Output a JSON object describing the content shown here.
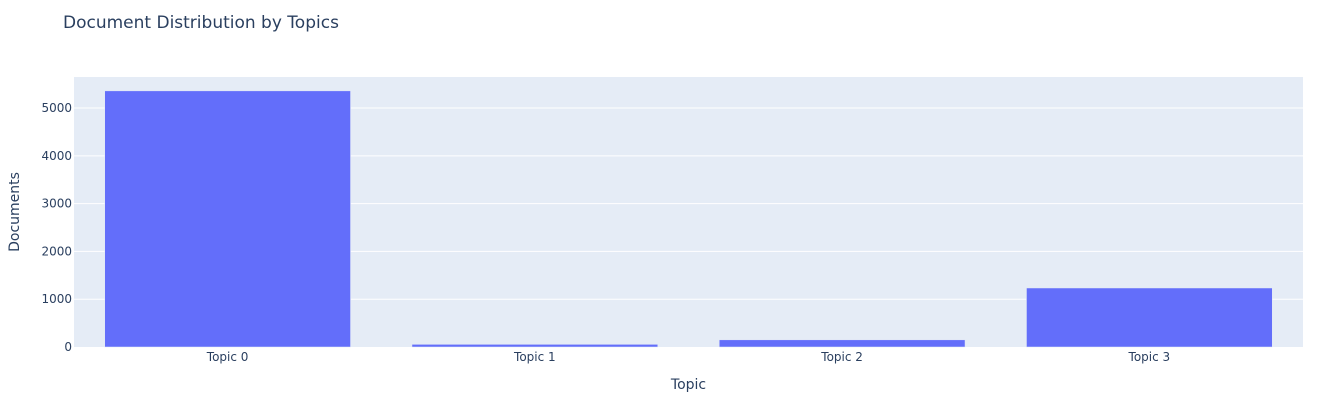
{
  "chart_data": {
    "type": "bar",
    "title": "Document Distribution by Topics",
    "xlabel": "Topic",
    "ylabel": "Documents",
    "categories": [
      "Topic 0",
      "Topic 1",
      "Topic 2",
      "Topic 3"
    ],
    "values": [
      5360,
      55,
      150,
      1235
    ],
    "ylim": [
      0,
      5650
    ],
    "yticks": [
      0,
      1000,
      2000,
      3000,
      4000,
      5000
    ],
    "grid": true,
    "legend": "none",
    "colors": {
      "bar": "#636efa",
      "plot_background": "#e5ecf6",
      "gridline": "#ffffff",
      "text": "#2a3f5f"
    }
  }
}
